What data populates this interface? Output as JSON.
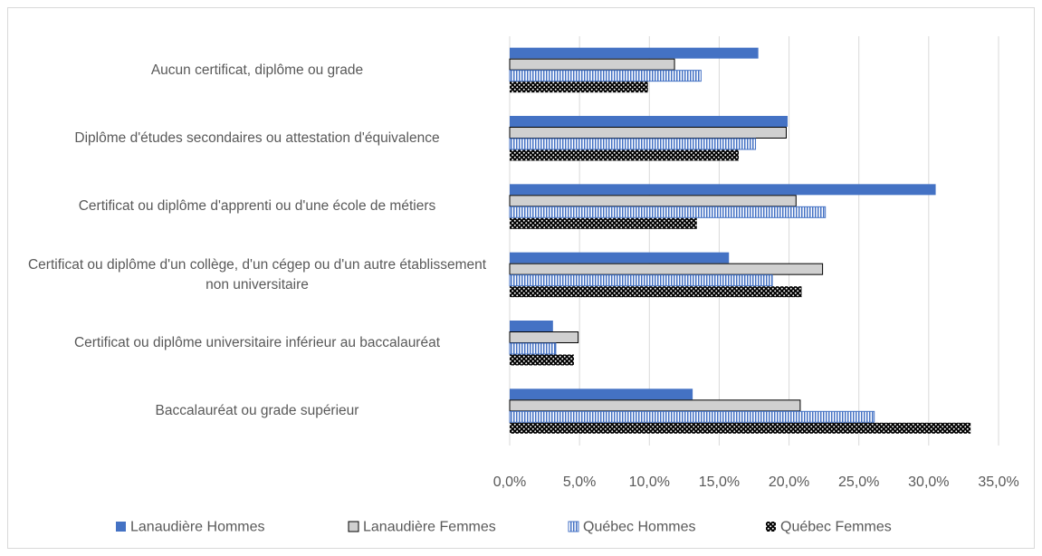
{
  "chart_data": {
    "type": "hbar",
    "categories": [
      "Aucun certificat, diplôme ou grade",
      "Diplôme d'études secondaires ou attestation d'équivalence",
      "Certificat ou diplôme d'apprenti ou d'une école de métiers",
      "Certificat ou diplôme d'un collège, d'un cégep ou d'un autre établissement non universitaire",
      "Certificat ou diplôme universitaire inférieur au baccalauréat",
      "Baccalauréat ou grade supérieur"
    ],
    "series": [
      {
        "name": "Lanaudière Hommes",
        "color": "#4472c4",
        "values": [
          17.8,
          19.9,
          30.5,
          15.7,
          3.1,
          13.1
        ]
      },
      {
        "name": "Lanaudière Femmes",
        "color": "#d0d0d0",
        "values": [
          11.8,
          19.8,
          20.5,
          22.4,
          4.9,
          20.8
        ]
      },
      {
        "name": "Québec Hommes",
        "color": "#4472c4",
        "values": [
          13.7,
          17.6,
          22.6,
          18.8,
          3.3,
          26.1
        ]
      },
      {
        "name": "Québec Femmes",
        "color": "#000000",
        "values": [
          9.9,
          16.4,
          13.4,
          20.9,
          4.6,
          33.0
        ]
      }
    ],
    "xlim": [
      0,
      35
    ],
    "xticks": [
      {
        "value": 0,
        "label": "0,0%"
      },
      {
        "value": 5,
        "label": "5,0%"
      },
      {
        "value": 10,
        "label": "10,0%"
      },
      {
        "value": 15,
        "label": "15,0%"
      },
      {
        "value": 20,
        "label": "20,0%"
      },
      {
        "value": 25,
        "label": "25,0%"
      },
      {
        "value": 30,
        "label": "30,0%"
      },
      {
        "value": 35,
        "label": "35,0%"
      }
    ],
    "grid": true,
    "legend": "bottom"
  }
}
